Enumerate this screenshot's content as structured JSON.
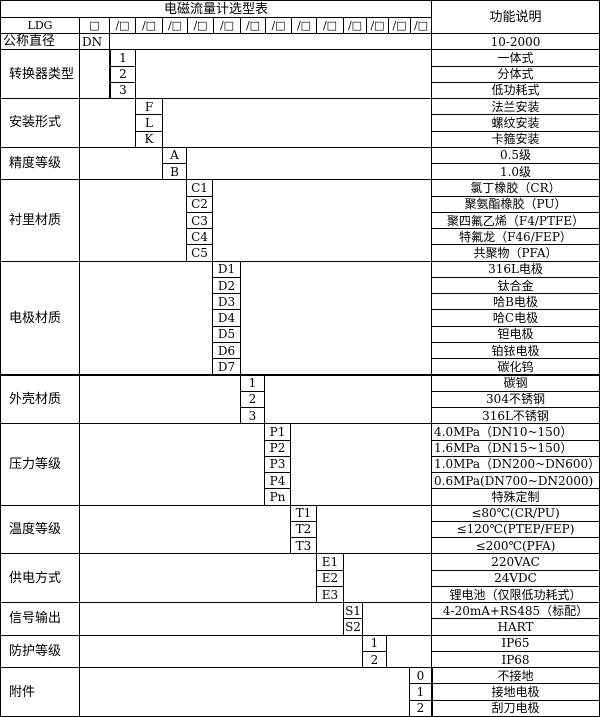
{
  "title": "电磁流量计选型表",
  "function_header": "功能说明",
  "model_row": {
    "prefix": "LDG",
    "slots": [
      "□",
      "/□",
      "/□",
      "/□",
      "/□",
      "/□",
      "/□",
      "/□",
      "/□",
      "/□",
      "/□",
      "/□",
      "/□",
      "/□"
    ]
  },
  "nominal_diameter": {
    "label": "公称直径",
    "code": "DN",
    "description": "10-2000"
  },
  "groups": [
    {
      "label": "转换器类型",
      "col": 0,
      "codes": [
        "1",
        "2",
        "3"
      ],
      "descriptions": [
        "一体式",
        "分体式",
        "低功耗式"
      ]
    },
    {
      "label": "安装形式",
      "col": 1,
      "codes": [
        "F",
        "L",
        "K"
      ],
      "descriptions": [
        "法兰安装",
        "螺纹安装",
        "卡箍安装"
      ]
    },
    {
      "label": "精度等级",
      "col": 2,
      "codes": [
        "A",
        "B"
      ],
      "descriptions": [
        "0.5级",
        "1.0级"
      ]
    },
    {
      "label": "衬里材质",
      "col": 3,
      "codes": [
        "C1",
        "C2",
        "C3",
        "C4",
        "C5"
      ],
      "descriptions": [
        "氯丁橡胶（CR）",
        "聚氨酯橡胶（PU）",
        "聚四氟乙烯（F4/PTFE）",
        "特氟龙（F46/FEP）",
        "共聚物（PFA）"
      ]
    },
    {
      "label": "电极材质",
      "col": 4,
      "codes": [
        "D1",
        "D2",
        "D3",
        "D4",
        "D5",
        "D6",
        "D7"
      ],
      "descriptions": [
        "316L电极",
        "钛合金",
        "哈B电极",
        "哈C电极",
        "钽电极",
        "铂铱电极",
        "碳化钨"
      ]
    },
    {
      "label": "外壳材质",
      "col": 5,
      "codes": [
        "1",
        "2",
        "3"
      ],
      "descriptions": [
        "碳钢",
        "304不锈钢",
        "316L不锈钢"
      ]
    },
    {
      "label": "压力等级",
      "col": 6,
      "codes": [
        "P1",
        "P2",
        "P3",
        "P4",
        "Pn"
      ],
      "descriptions": [
        "4.0MPa（DN10~150）",
        "1.6MPa（DN15~150）",
        "1.0MPa（DN200~DN600）",
        "0.6MPa(DN700~DN2000)",
        "特殊定制"
      ],
      "left_aligned": [
        true,
        true,
        true,
        true,
        false
      ]
    },
    {
      "label": "温度等级",
      "col": 7,
      "codes": [
        "T1",
        "T2",
        "T3"
      ],
      "descriptions": [
        "≤80℃(CR/PU)",
        "≤120℃(PTEP/FEP)",
        "≤200℃(PFA)"
      ]
    },
    {
      "label": "供电方式",
      "col": 8,
      "codes": [
        "E1",
        "E2",
        "E3"
      ],
      "descriptions": [
        "220VAC",
        "24VDC",
        "锂电池（仅限低功耗式）"
      ]
    },
    {
      "label": "信号输出",
      "col": 9,
      "codes": [
        "S1",
        "S2"
      ],
      "descriptions": [
        "4-20mA+RS485（标配）",
        "HART"
      ]
    },
    {
      "label": "防护等级",
      "col": 10,
      "codes": [
        "1",
        "2"
      ],
      "descriptions": [
        "IP65",
        "IP68"
      ]
    },
    {
      "label": "附件",
      "col": 12,
      "codes": [
        "0",
        "1",
        "2"
      ],
      "descriptions": [
        "不接地",
        "接地电极",
        "刮刀电极"
      ]
    }
  ]
}
